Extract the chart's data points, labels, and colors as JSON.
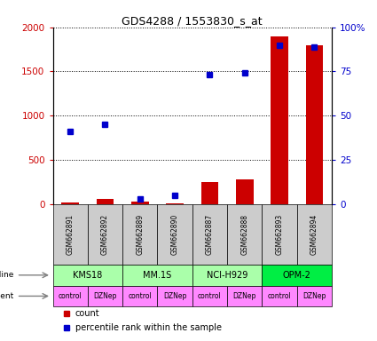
{
  "title": "GDS4288 / 1553830_s_at",
  "samples": [
    "GSM662891",
    "GSM662892",
    "GSM662889",
    "GSM662890",
    "GSM662887",
    "GSM662888",
    "GSM662893",
    "GSM662894"
  ],
  "count_values": [
    20,
    55,
    30,
    8,
    250,
    280,
    1900,
    1800
  ],
  "percentile_values": [
    41,
    45,
    3,
    5,
    73,
    74,
    90,
    89
  ],
  "ylim_left": [
    0,
    2000
  ],
  "ylim_right": [
    0,
    100
  ],
  "yticks_left": [
    0,
    500,
    1000,
    1500,
    2000
  ],
  "yticks_right": [
    0,
    25,
    50,
    75,
    100
  ],
  "yticklabels_right": [
    "0",
    "25",
    "50",
    "75",
    "100%"
  ],
  "cell_groups": [
    {
      "label": "KMS18",
      "start": 0,
      "end": 1,
      "color": "#aaffaa"
    },
    {
      "label": "MM.1S",
      "start": 2,
      "end": 3,
      "color": "#aaffaa"
    },
    {
      "label": "NCI-H929",
      "start": 4,
      "end": 5,
      "color": "#aaffaa"
    },
    {
      "label": "OPM-2",
      "start": 6,
      "end": 7,
      "color": "#00ee44"
    }
  ],
  "agents": [
    "control",
    "DZNep",
    "control",
    "DZNep",
    "control",
    "DZNep",
    "control",
    "DZNep"
  ],
  "agent_color": "#ff88ff",
  "sample_bg_color": "#cccccc",
  "bar_color": "#cc0000",
  "dot_color": "#0000cc",
  "bar_width": 0.5,
  "left_axis_color": "#cc0000",
  "right_axis_color": "#0000cc"
}
